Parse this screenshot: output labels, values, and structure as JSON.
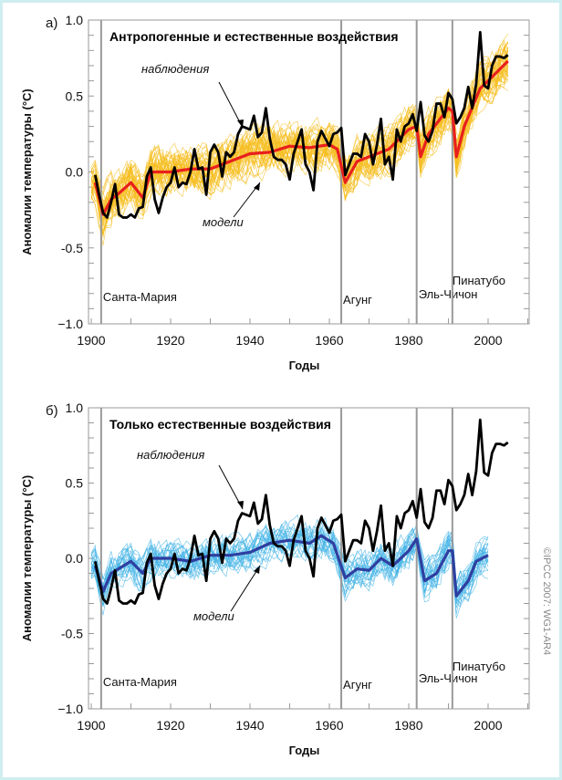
{
  "copyright": "©IPCC 2007: WG1-AR4",
  "chart_data": [
    {
      "type": "line",
      "panel_label": "а)",
      "title": "Антропогенные и естественные воздействия",
      "xlabel": "Годы",
      "ylabel": "Аномалии температуры (°C)",
      "xlim": [
        1900,
        2011
      ],
      "ylim": [
        -1.0,
        1.0
      ],
      "xticks": [
        1900,
        1920,
        1940,
        1960,
        1980,
        2000
      ],
      "yticks": [
        -1.0,
        -0.5,
        0.0,
        0.5,
        1.0
      ],
      "ytick_labels": [
        "−1.0",
        "-0.5",
        "0.0",
        "0.5",
        "1.0"
      ],
      "annotations": {
        "observations": "наблюдения",
        "models": "модели"
      },
      "volcanoes": [
        {
          "name": "Санта-Мария",
          "year": 1902.5
        },
        {
          "name": "Агунг",
          "year": 1963
        },
        {
          "name": "Эль-Чичон",
          "year": 1982
        },
        {
          "name": "Пинатубо",
          "year": 1991
        }
      ],
      "colors": {
        "ensemble": "#f5be1f",
        "mean": "#e8201c",
        "obs": "#000000"
      },
      "ensemble": {
        "members": 40,
        "spread": 0.14,
        "end_year": 2005
      },
      "model_mean": {
        "x": [
          1901,
          1903,
          1905,
          1907,
          1910,
          1913,
          1915,
          1917,
          1920,
          1925,
          1930,
          1935,
          1940,
          1945,
          1950,
          1955,
          1960,
          1962,
          1964,
          1967,
          1970,
          1975,
          1980,
          1982,
          1983,
          1985,
          1990,
          1991,
          1992,
          1994,
          1998,
          2000,
          2005
        ],
        "y": [
          -0.07,
          -0.28,
          -0.18,
          -0.14,
          -0.07,
          -0.17,
          0.0,
          0.0,
          0.0,
          0.02,
          0.02,
          0.07,
          0.12,
          0.13,
          0.17,
          0.16,
          0.18,
          0.15,
          -0.07,
          0.07,
          0.1,
          0.15,
          0.28,
          0.3,
          0.1,
          0.25,
          0.42,
          0.4,
          0.1,
          0.3,
          0.55,
          0.6,
          0.73
        ]
      }
    },
    {
      "type": "line",
      "panel_label": "б)",
      "title": "Только естественные воздействия",
      "xlabel": "Годы",
      "ylabel": "Аномалии температуры (°C)",
      "xlim": [
        1900,
        2011
      ],
      "ylim": [
        -1.0,
        1.0
      ],
      "xticks": [
        1900,
        1920,
        1940,
        1960,
        1980,
        2000
      ],
      "yticks": [
        -1.0,
        -0.5,
        0.0,
        0.5,
        1.0
      ],
      "ytick_labels": [
        "−1.0",
        "-0.5",
        "0.0",
        "0.5",
        "1.0"
      ],
      "annotations": {
        "observations": "наблюдения",
        "models": "модели"
      },
      "volcanoes": [
        {
          "name": "Санта-Мария",
          "year": 1902.5
        },
        {
          "name": "Агунг",
          "year": 1963
        },
        {
          "name": "Эль-Чичон",
          "year": 1982
        },
        {
          "name": "Пинатубо",
          "year": 1991
        }
      ],
      "colors": {
        "ensemble": "#45b4e6",
        "mean": "#2e3fa0",
        "obs": "#000000"
      },
      "ensemble": {
        "members": 25,
        "spread": 0.12,
        "end_year": 2000
      },
      "model_mean": {
        "x": [
          1901,
          1903,
          1905,
          1910,
          1913,
          1915,
          1920,
          1925,
          1930,
          1935,
          1940,
          1945,
          1950,
          1955,
          1958,
          1961,
          1964,
          1967,
          1970,
          1973,
          1976,
          1980,
          1982,
          1984,
          1987,
          1990,
          1991,
          1992,
          1995,
          1997,
          2000
        ],
        "y": [
          -0.05,
          -0.22,
          -0.1,
          -0.02,
          -0.1,
          0.0,
          0.0,
          -0.02,
          0.02,
          0.02,
          0.04,
          0.1,
          0.12,
          0.1,
          0.15,
          0.1,
          -0.13,
          -0.07,
          -0.08,
          0.0,
          -0.05,
          0.05,
          0.13,
          -0.15,
          -0.1,
          0.05,
          0.05,
          -0.25,
          -0.15,
          -0.02,
          0.02
        ]
      }
    }
  ],
  "observations": {
    "start_year": 1901,
    "y": [
      -0.02,
      -0.15,
      -0.27,
      -0.3,
      -0.2,
      -0.08,
      -0.28,
      -0.3,
      -0.3,
      -0.28,
      -0.3,
      -0.24,
      -0.23,
      -0.03,
      0.03,
      -0.18,
      -0.27,
      -0.17,
      -0.1,
      -0.07,
      0.03,
      -0.1,
      -0.07,
      -0.08,
      0.0,
      0.15,
      0.02,
      0.03,
      -0.15,
      0.13,
      0.18,
      0.13,
      -0.03,
      0.13,
      0.1,
      0.13,
      0.25,
      0.3,
      0.29,
      0.28,
      0.37,
      0.23,
      0.26,
      0.42,
      0.22,
      0.1,
      0.08,
      0.08,
      0.05,
      -0.05,
      0.12,
      0.2,
      0.28,
      0.05,
      0.0,
      -0.12,
      0.2,
      0.27,
      0.22,
      0.17,
      0.25,
      0.26,
      0.29,
      -0.02,
      0.05,
      0.12,
      0.12,
      0.1,
      0.25,
      0.2,
      0.05,
      0.18,
      0.35,
      0.05,
      0.1,
      -0.05,
      0.28,
      0.2,
      0.3,
      0.32,
      0.38,
      0.27,
      0.46,
      0.24,
      0.2,
      0.27,
      0.45,
      0.45,
      0.36,
      0.52,
      0.48,
      0.32,
      0.36,
      0.42,
      0.56,
      0.42,
      0.58,
      0.92,
      0.57,
      0.55,
      0.7,
      0.76,
      0.76,
      0.75,
      0.77
    ]
  }
}
